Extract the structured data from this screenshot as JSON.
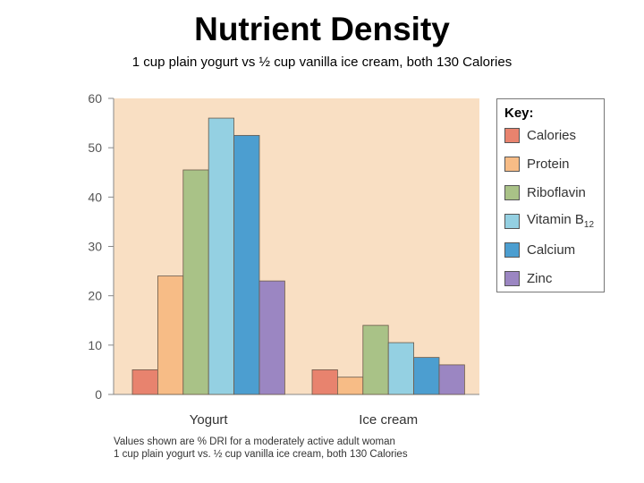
{
  "title": "Nutrient Density",
  "subtitle": "1 cup plain yogurt vs ½ cup vanilla ice cream, both 130 Calories",
  "key": {
    "title": "Key:",
    "items": [
      {
        "label": "Calories",
        "sub": "",
        "color": "#e8836e"
      },
      {
        "label": "Protein",
        "sub": "",
        "color": "#f7bc86"
      },
      {
        "label": "Riboflavin",
        "sub": "",
        "color": "#a9c287"
      },
      {
        "label": "Vitamin B",
        "sub": "12",
        "color": "#94d0e2"
      },
      {
        "label": "Calcium",
        "sub": "",
        "color": "#4c9ed0"
      },
      {
        "label": "Zinc",
        "sub": "",
        "color": "#9b86c2"
      }
    ]
  },
  "footnote": {
    "line1": "Values shown are % DRI for a moderately active adult woman",
    "line2": "1 cup plain yogurt vs. ½ cup vanilla ice cream, both 130 Calories"
  },
  "chart_data": {
    "type": "bar",
    "categories": [
      "Yogurt",
      "Ice cream"
    ],
    "series": [
      {
        "name": "Calories",
        "values": [
          5,
          5
        ]
      },
      {
        "name": "Protein",
        "values": [
          24,
          3.5
        ]
      },
      {
        "name": "Riboflavin",
        "values": [
          45.5,
          14
        ]
      },
      {
        "name": "Vitamin B12",
        "values": [
          56,
          10.5
        ]
      },
      {
        "name": "Calcium",
        "values": [
          52.5,
          7.5
        ]
      },
      {
        "name": "Zinc",
        "values": [
          23,
          6
        ]
      }
    ],
    "title": "Nutrient Density",
    "xlabel": "",
    "ylabel": "",
    "ylim": [
      0,
      60
    ],
    "yticks": [
      "0",
      "10",
      "20",
      "30",
      "40",
      "50",
      "60"
    ],
    "plot_background": "#f9dfc3",
    "grid": false,
    "legend": "right"
  }
}
